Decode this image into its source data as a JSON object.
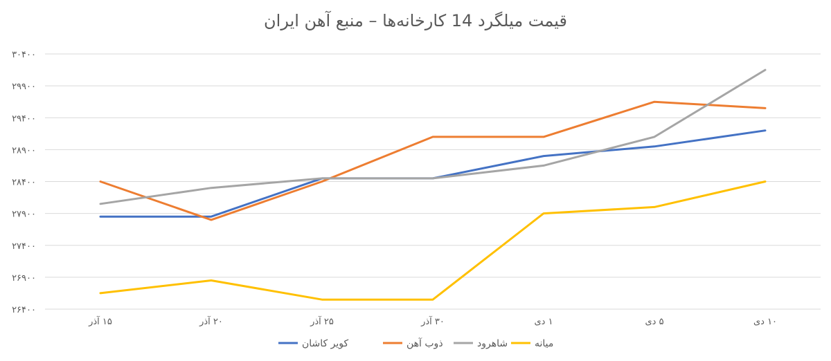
{
  "chart_data": {
    "type": "line",
    "title": "قیمت میلگرد 14 کارخانه‌ها – منبع آهن ایران",
    "categories": [
      "۱۵ آذر",
      "۲۰ آذر",
      "۲۵ آذر",
      "۳۰ آذر",
      "۱ دی",
      "۵ دی",
      "۱۰ دی"
    ],
    "y_ticks": [
      26400,
      26900,
      27400,
      27900,
      28400,
      28900,
      29400,
      29900,
      30400
    ],
    "y_tick_labels": [
      "۲۶۴۰۰",
      "۲۶۹۰۰",
      "۲۷۴۰۰",
      "۲۷۹۰۰",
      "۲۸۴۰۰",
      "۲۸۹۰۰",
      "۲۹۴۰۰",
      "۲۹۹۰۰",
      "۳۰۴۰۰"
    ],
    "ylim": [
      26400,
      30400
    ],
    "grid": true,
    "legend_position": "bottom",
    "series": [
      {
        "name": "کویر کاشان",
        "color": "#4472C4",
        "values": [
          27850,
          27850,
          28450,
          28450,
          28800,
          28950,
          29200
        ]
      },
      {
        "name": "ذوب آهن",
        "color": "#ED7D31",
        "values": [
          28400,
          27800,
          28400,
          29100,
          29100,
          29650,
          29550
        ]
      },
      {
        "name": "شاهرود",
        "color": "#A5A5A5",
        "values": [
          28050,
          28300,
          28450,
          28450,
          28650,
          29100,
          30150
        ]
      },
      {
        "name": "میانه",
        "color": "#FFC000",
        "values": [
          26650,
          26850,
          26550,
          26550,
          27900,
          28000,
          28400
        ]
      }
    ]
  }
}
